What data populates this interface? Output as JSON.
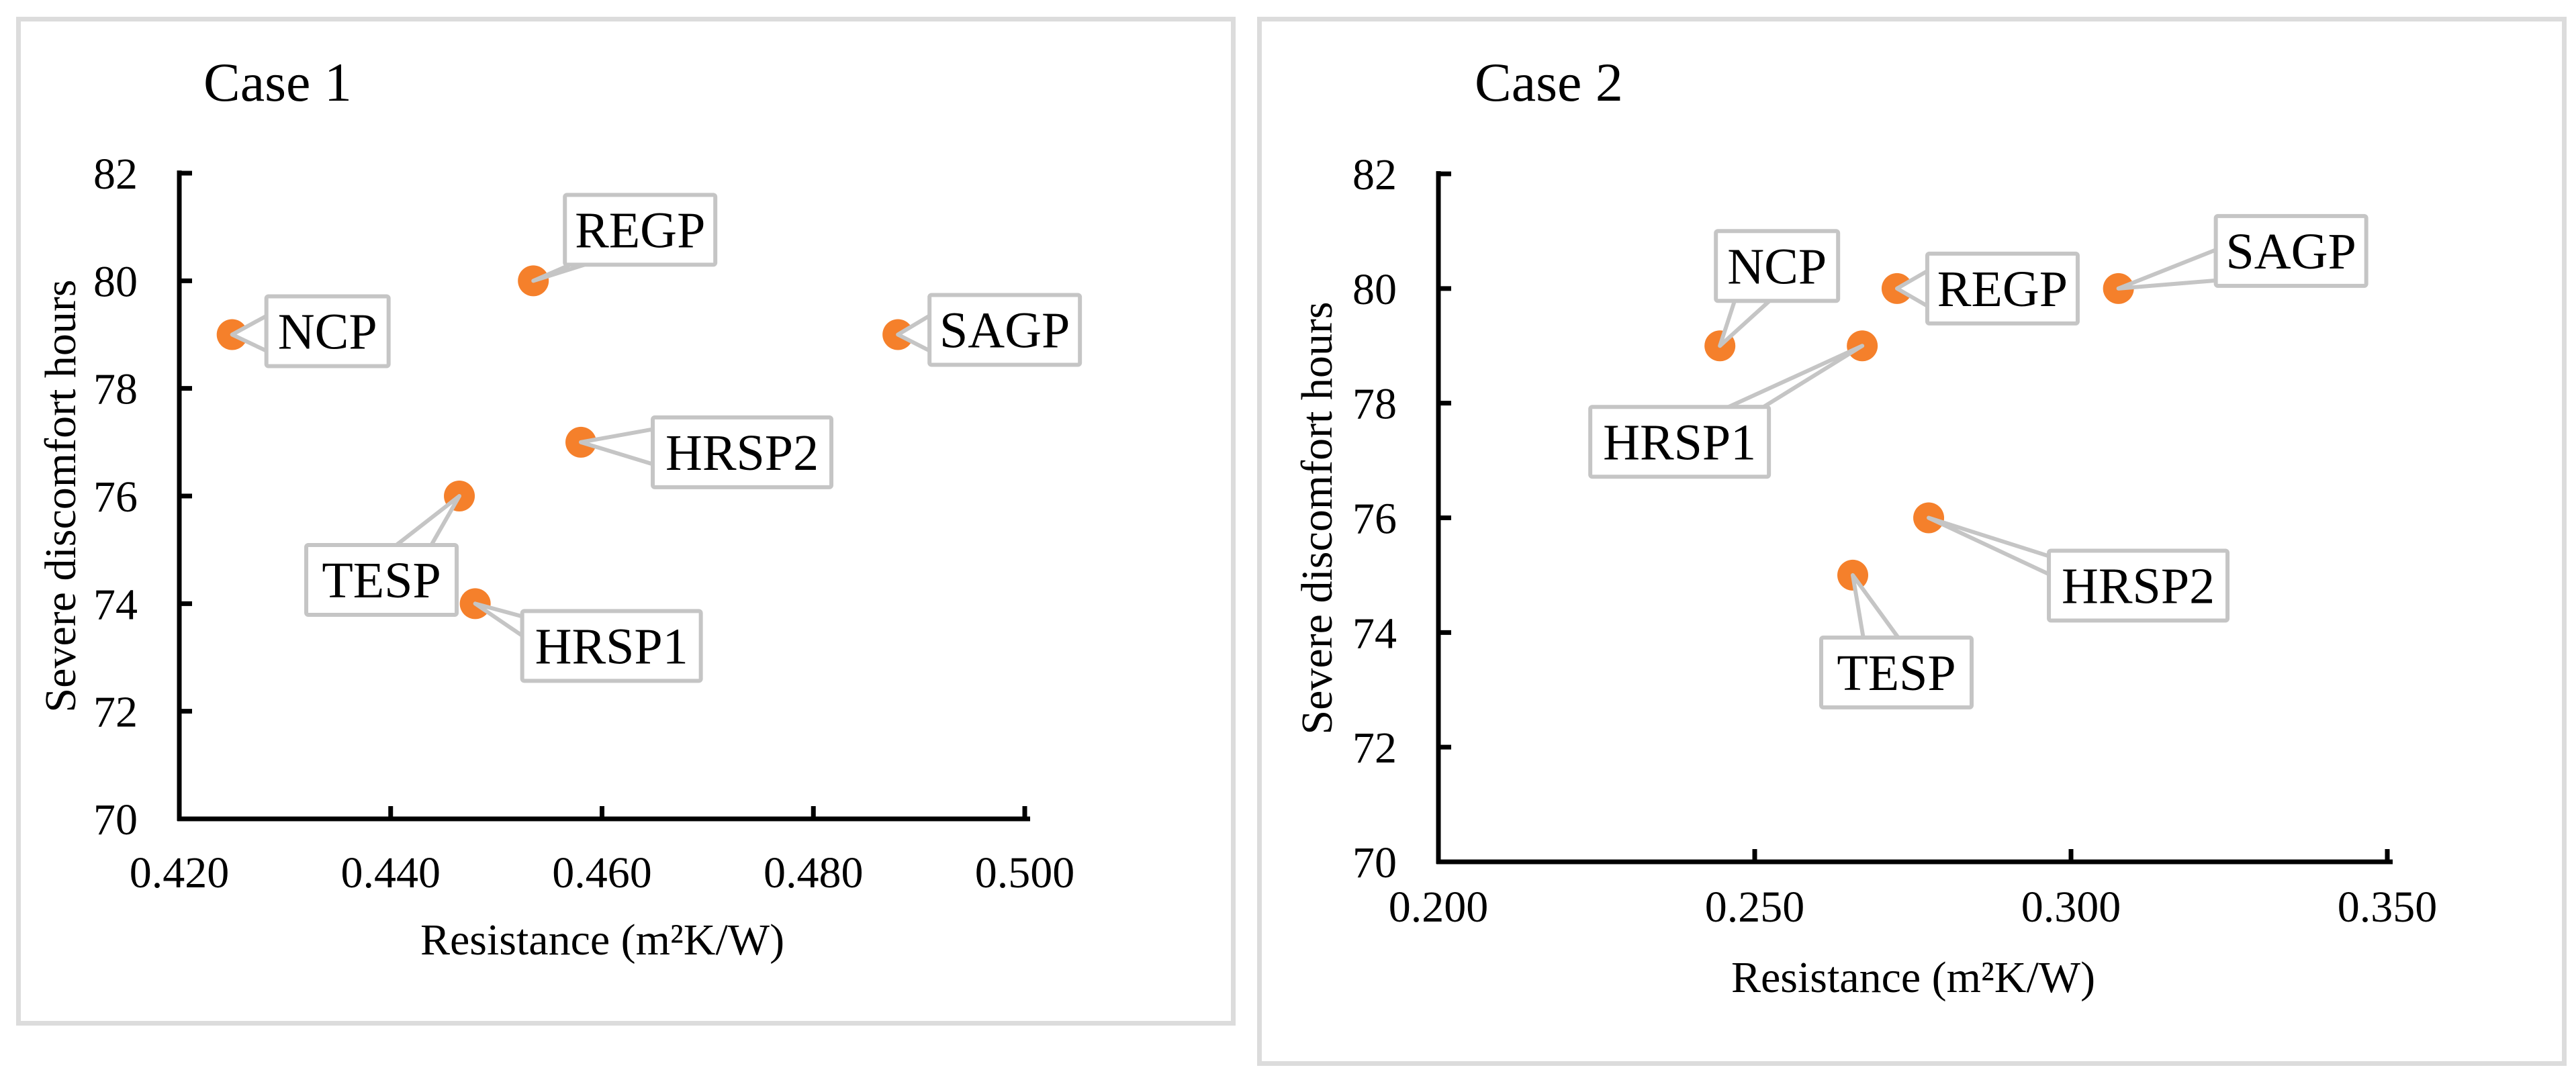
{
  "page": {
    "background_color": "#FFFFFF",
    "panel_border_color": "#DCDCDC"
  },
  "chart_data": [
    {
      "type": "scatter",
      "title": "Case 1",
      "xlabel": "Resistance (m²K/W)",
      "ylabel": "Severe discomfort hours",
      "xlim": [
        0.42,
        0.5
      ],
      "ylim": [
        70,
        82
      ],
      "xticks": [
        0.42,
        0.44,
        0.46,
        0.48,
        0.5
      ],
      "xtick_labels": [
        "0.420",
        "0.440",
        "0.460",
        "0.480",
        "0.500"
      ],
      "yticks": [
        70,
        72,
        74,
        76,
        78,
        80,
        82
      ],
      "ytick_labels": [
        "70",
        "72",
        "74",
        "76",
        "78",
        "80",
        "82"
      ],
      "grid": false,
      "legend_position": "none",
      "axis_color": "#000000",
      "marker_color": "#F5802B",
      "callout_line_color": "#C5C5C5",
      "callout_fill_color": "#FFFFFF",
      "points": [
        {
          "label": "NCP",
          "x": 0.425,
          "y": 79,
          "label_offset": [
            51,
            -57
          ]
        },
        {
          "label": "REGP",
          "x": 0.4535,
          "y": 80,
          "label_offset": [
            47,
            -128
          ]
        },
        {
          "label": "SAGP",
          "x": 0.488,
          "y": 79,
          "label_offset": [
            47,
            -59
          ]
        },
        {
          "label": "HRSP2",
          "x": 0.458,
          "y": 77,
          "label_offset": [
            107,
            -37
          ]
        },
        {
          "label": "TESP",
          "x": 0.4465,
          "y": 76,
          "label_offset": [
            -228,
            73
          ]
        },
        {
          "label": "HRSP1",
          "x": 0.448,
          "y": 74,
          "label_offset": [
            70,
            11
          ]
        }
      ]
    },
    {
      "type": "scatter",
      "title": "Case 2",
      "xlabel": "Resistance (m²K/W)",
      "ylabel": "Severe discomfort hours",
      "xlim": [
        0.2,
        0.35
      ],
      "ylim": [
        70,
        82
      ],
      "xticks": [
        0.2,
        0.25,
        0.3,
        0.35
      ],
      "xtick_labels": [
        "0.200",
        "0.250",
        "0.300",
        "0.350"
      ],
      "yticks": [
        70,
        72,
        74,
        76,
        78,
        80,
        82
      ],
      "ytick_labels": [
        "70",
        "72",
        "74",
        "76",
        "78",
        "80",
        "82"
      ],
      "grid": false,
      "legend_position": "none",
      "axis_color": "#000000",
      "marker_color": "#F5802B",
      "callout_line_color": "#C5C5C5",
      "callout_fill_color": "#FFFFFF",
      "points": [
        {
          "label": "NCP",
          "x": 0.2445,
          "y": 79,
          "label_offset": [
            -6,
            -171
          ]
        },
        {
          "label": "REGP",
          "x": 0.2725,
          "y": 80,
          "label_offset": [
            45,
            -52
          ]
        },
        {
          "label": "SAGP",
          "x": 0.3075,
          "y": 80,
          "label_offset": [
            145,
            -108
          ]
        },
        {
          "label": "HRSP1",
          "x": 0.267,
          "y": 79,
          "label_offset": [
            -405,
            91
          ]
        },
        {
          "label": "HRSP2",
          "x": 0.2775,
          "y": 76,
          "label_offset": [
            179,
            49
          ]
        },
        {
          "label": "TESP",
          "x": 0.2655,
          "y": 75,
          "label_offset": [
            -47,
            93
          ]
        }
      ]
    }
  ]
}
